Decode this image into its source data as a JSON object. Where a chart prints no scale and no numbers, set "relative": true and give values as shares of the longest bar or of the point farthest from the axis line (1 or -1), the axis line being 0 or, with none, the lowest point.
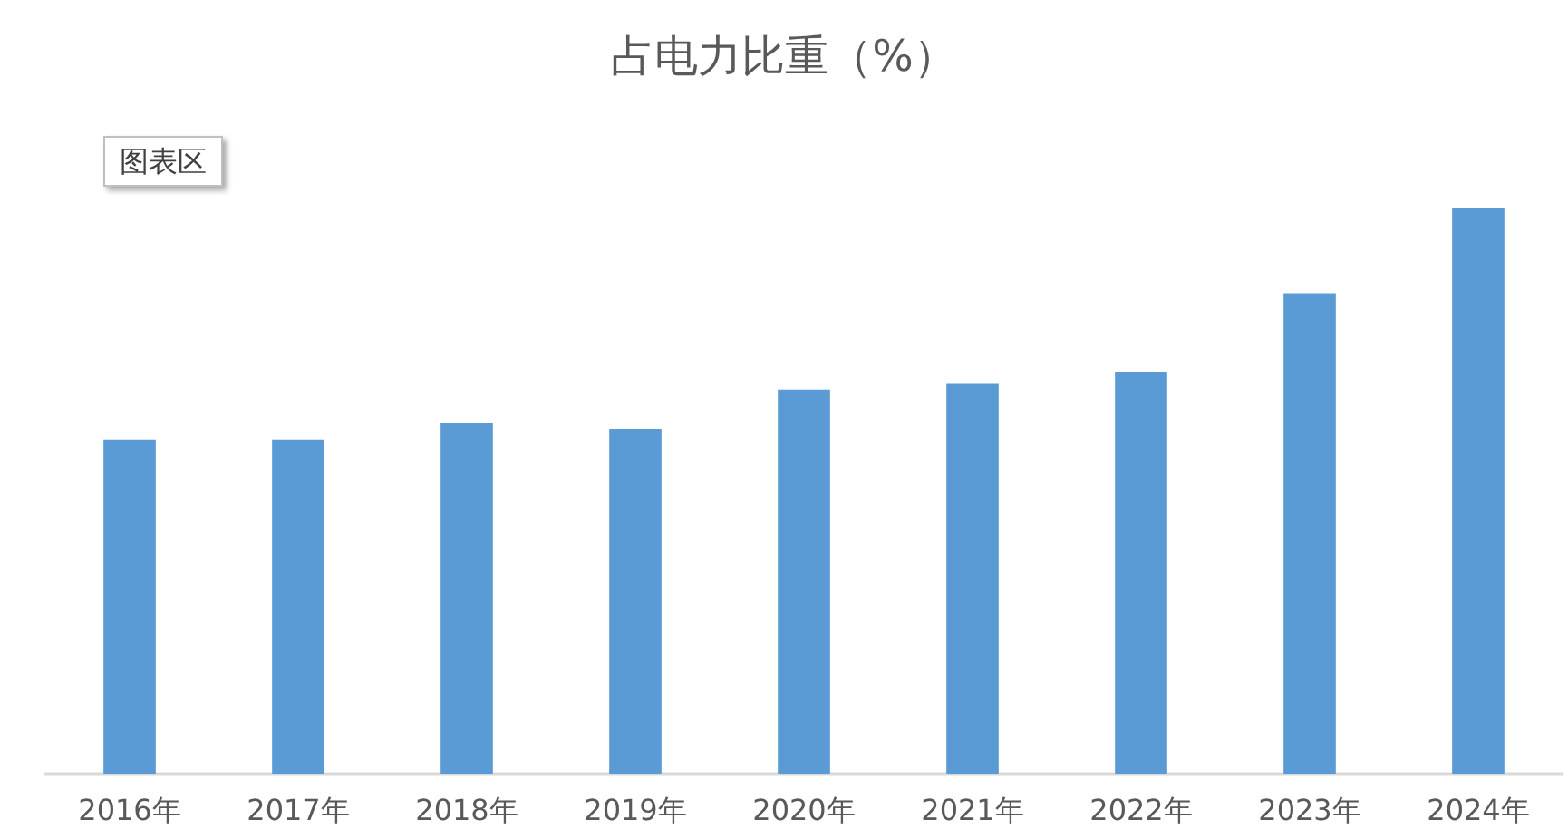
{
  "chart_data": {
    "type": "bar",
    "title": "占电力比重（%）",
    "categories": [
      "2016年",
      "2017年",
      "2018年",
      "2019年",
      "2020年",
      "2021年",
      "2022年",
      "2023年",
      "2024年"
    ],
    "values": [
      0.59,
      0.59,
      0.62,
      0.61,
      0.68,
      0.69,
      0.71,
      0.85,
      1
    ],
    "color": "#5b9bd5",
    "relative": true,
    "annotations": [
      "图表区"
    ]
  }
}
